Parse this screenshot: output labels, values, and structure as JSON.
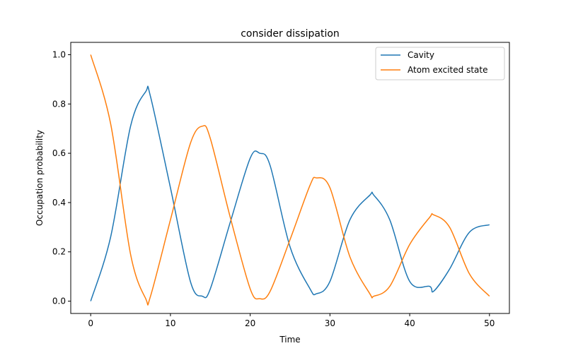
{
  "chart_data": {
    "type": "line",
    "title": "consider dissipation",
    "xlabel": "Time",
    "ylabel": "Occupation probability",
    "xlim": [
      -2.5,
      52.5
    ],
    "ylim": [
      -0.05,
      1.05
    ],
    "xticks": [
      0,
      10,
      20,
      30,
      40,
      50
    ],
    "yticks": [
      0.0,
      0.2,
      0.4,
      0.6,
      0.8,
      1.0
    ],
    "xtick_labels": [
      "0",
      "10",
      "20",
      "30",
      "40",
      "50"
    ],
    "ytick_labels": [
      "0.0",
      "0.2",
      "0.4",
      "0.6",
      "0.8",
      "1.0"
    ],
    "grid": false,
    "legend_position": "top-right",
    "x": [
      0,
      2.5,
      5,
      6.9,
      7.5,
      10,
      12.5,
      14,
      15,
      17.5,
      20,
      21.2,
      22.5,
      25,
      27.5,
      28.3,
      30,
      32.5,
      35,
      35.5,
      37.5,
      40,
      42.5,
      43,
      45,
      47.5,
      50
    ],
    "series": [
      {
        "name": "Cavity",
        "color": "#1f77b4",
        "values": [
          0.0,
          0.26,
          0.71,
          0.85,
          0.83,
          0.46,
          0.08,
          0.02,
          0.05,
          0.32,
          0.58,
          0.6,
          0.55,
          0.22,
          0.05,
          0.03,
          0.08,
          0.33,
          0.43,
          0.43,
          0.33,
          0.08,
          0.06,
          0.04,
          0.13,
          0.28,
          0.31
        ]
      },
      {
        "name": "Atom excited state",
        "color": "#ff7f0e",
        "values": [
          1.0,
          0.72,
          0.19,
          0.01,
          0.02,
          0.33,
          0.64,
          0.71,
          0.66,
          0.34,
          0.05,
          0.01,
          0.04,
          0.25,
          0.47,
          0.5,
          0.46,
          0.18,
          0.03,
          0.02,
          0.06,
          0.23,
          0.34,
          0.35,
          0.3,
          0.11,
          0.02
        ]
      }
    ]
  }
}
